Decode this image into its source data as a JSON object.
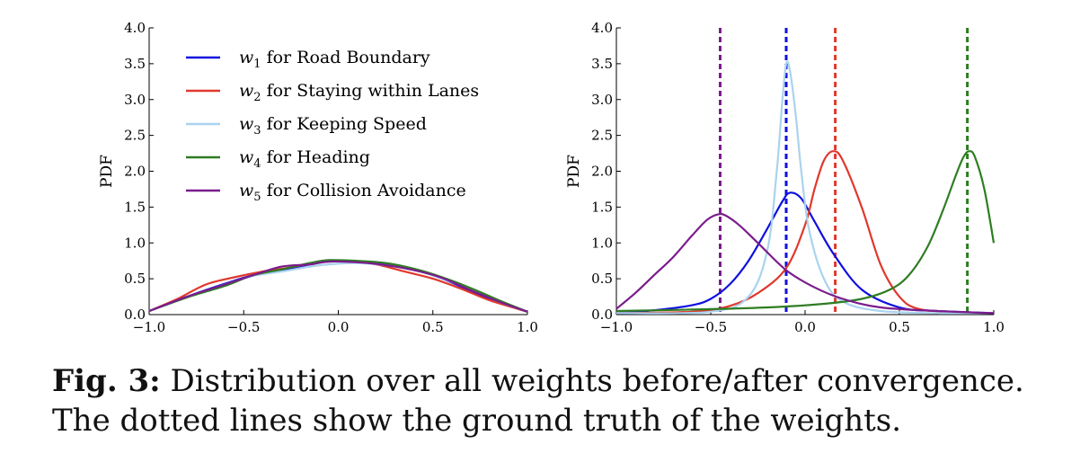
{
  "caption": {
    "label": "Fig. 3:",
    "line1": "Distribution over all weights before/after convergence.",
    "line2": "The dotted lines show the ground truth of the weights."
  },
  "chart_data": [
    {
      "type": "line",
      "panel": "left",
      "ylabel": "PDF",
      "xlabel": "",
      "xlim": [
        -1.0,
        1.0
      ],
      "ylim": [
        0.0,
        4.0
      ],
      "xticks": [
        "−1.0",
        "−0.5",
        "0.0",
        "0.5",
        "1.0"
      ],
      "yticks": [
        "0.0",
        "0.5",
        "1.0",
        "1.5",
        "2.0",
        "2.5",
        "3.0",
        "3.5",
        "4.0"
      ],
      "legend_position": "upper-left",
      "series": [
        {
          "name": "w1 for Road Boundary",
          "sub": "1",
          "label_tail": " for Road Boundary",
          "color": "#1010e0",
          "x": [
            -1.0,
            -0.8,
            -0.6,
            -0.45,
            -0.3,
            -0.15,
            -0.05,
            0.1,
            0.25,
            0.4,
            0.55,
            0.7,
            0.85,
            1.0
          ],
          "y": [
            0.05,
            0.25,
            0.43,
            0.55,
            0.62,
            0.7,
            0.74,
            0.74,
            0.7,
            0.63,
            0.5,
            0.33,
            0.17,
            0.04
          ]
        },
        {
          "name": "w2 for Staying within Lanes",
          "sub": "2",
          "label_tail": " for Staying within Lanes",
          "color": "#e0382c",
          "x": [
            -1.0,
            -0.85,
            -0.7,
            -0.55,
            -0.4,
            -0.25,
            -0.1,
            0.05,
            0.2,
            0.35,
            0.5,
            0.65,
            0.8,
            1.0
          ],
          "y": [
            0.05,
            0.22,
            0.42,
            0.52,
            0.6,
            0.66,
            0.73,
            0.74,
            0.7,
            0.6,
            0.5,
            0.36,
            0.2,
            0.04
          ]
        },
        {
          "name": "w3 for Keeping Speed",
          "sub": "3",
          "label_tail": " for Keeping Speed",
          "color": "#a9d3ee",
          "x": [
            -1.0,
            -0.8,
            -0.6,
            -0.45,
            -0.3,
            -0.15,
            -0.05,
            0.1,
            0.25,
            0.4,
            0.55,
            0.7,
            0.85,
            1.0
          ],
          "y": [
            0.05,
            0.24,
            0.42,
            0.54,
            0.6,
            0.67,
            0.7,
            0.72,
            0.69,
            0.63,
            0.5,
            0.35,
            0.18,
            0.04
          ]
        },
        {
          "name": "w4 for Heading",
          "sub": "4",
          "label_tail": " for Heading",
          "color": "#2e7d22",
          "x": [
            -1.0,
            -0.8,
            -0.6,
            -0.45,
            -0.3,
            -0.15,
            -0.05,
            0.1,
            0.25,
            0.4,
            0.55,
            0.7,
            0.85,
            1.0
          ],
          "y": [
            0.05,
            0.24,
            0.4,
            0.55,
            0.63,
            0.72,
            0.76,
            0.75,
            0.72,
            0.64,
            0.52,
            0.37,
            0.2,
            0.04
          ]
        },
        {
          "name": "w5 for Collision Avoidance",
          "sub": "5",
          "label_tail": " for Collision Avoidance",
          "color": "#7b1c8c",
          "x": [
            -1.0,
            -0.8,
            -0.6,
            -0.45,
            -0.3,
            -0.15,
            -0.05,
            0.1,
            0.25,
            0.4,
            0.55,
            0.7,
            0.85,
            1.0
          ],
          "y": [
            0.05,
            0.25,
            0.42,
            0.55,
            0.67,
            0.7,
            0.74,
            0.73,
            0.69,
            0.62,
            0.51,
            0.34,
            0.18,
            0.04
          ]
        }
      ]
    },
    {
      "type": "line",
      "panel": "right",
      "ylabel": "PDF",
      "xlabel": "",
      "xlim": [
        -1.0,
        1.0
      ],
      "ylim": [
        0.0,
        4.0
      ],
      "xticks": [
        "−1.0",
        "−0.5",
        "0.0",
        "0.5",
        "1.0"
      ],
      "yticks": [
        "0.0",
        "0.5",
        "1.0",
        "1.5",
        "2.0",
        "2.5",
        "3.0",
        "3.5",
        "4.0"
      ],
      "series": [
        {
          "name": "w1 for Road Boundary",
          "color": "#1010e0",
          "x": [
            -1.0,
            -0.8,
            -0.6,
            -0.5,
            -0.4,
            -0.3,
            -0.2,
            -0.12,
            -0.08,
            -0.02,
            0.05,
            0.15,
            0.3,
            0.5,
            0.7,
            1.0
          ],
          "y": [
            0.02,
            0.06,
            0.13,
            0.22,
            0.42,
            0.75,
            1.2,
            1.58,
            1.7,
            1.62,
            1.3,
            0.85,
            0.35,
            0.1,
            0.05,
            0.02
          ]
        },
        {
          "name": "w2 for Staying within Lanes",
          "color": "#e0382c",
          "x": [
            -1.0,
            -0.6,
            -0.4,
            -0.25,
            -0.1,
            0.0,
            0.05,
            0.1,
            0.15,
            0.2,
            0.3,
            0.4,
            0.5,
            0.6,
            0.8,
            1.0
          ],
          "y": [
            0.02,
            0.04,
            0.12,
            0.3,
            0.65,
            1.25,
            1.75,
            2.15,
            2.28,
            2.15,
            1.5,
            0.7,
            0.25,
            0.08,
            0.03,
            0.02
          ]
        },
        {
          "name": "w3 for Keeping Speed",
          "color": "#a9d3ee",
          "x": [
            -1.0,
            -0.5,
            -0.3,
            -0.2,
            -0.15,
            -0.12,
            -0.1,
            -0.08,
            -0.05,
            -0.02,
            0.02,
            0.1,
            0.2,
            0.4,
            0.7,
            1.0
          ],
          "y": [
            0.02,
            0.04,
            0.25,
            0.9,
            2.0,
            3.0,
            3.5,
            3.4,
            2.8,
            2.0,
            1.2,
            0.5,
            0.18,
            0.05,
            0.02,
            0.02
          ]
        },
        {
          "name": "w4 for Heading",
          "color": "#2e7d22",
          "x": [
            -1.0,
            -0.6,
            -0.2,
            0.1,
            0.3,
            0.45,
            0.55,
            0.65,
            0.73,
            0.8,
            0.84,
            0.87,
            0.9,
            0.95,
            1.0
          ],
          "y": [
            0.05,
            0.07,
            0.1,
            0.15,
            0.22,
            0.35,
            0.55,
            0.95,
            1.45,
            1.95,
            2.2,
            2.28,
            2.2,
            1.75,
            1.0
          ]
        },
        {
          "name": "w5 for Collision Avoidance",
          "color": "#7b1c8c",
          "x": [
            -1.0,
            -0.9,
            -0.8,
            -0.7,
            -0.6,
            -0.52,
            -0.46,
            -0.42,
            -0.35,
            -0.25,
            -0.1,
            0.05,
            0.2,
            0.4,
            0.7,
            1.0
          ],
          "y": [
            0.08,
            0.3,
            0.55,
            0.8,
            1.1,
            1.32,
            1.4,
            1.38,
            1.25,
            1.0,
            0.62,
            0.38,
            0.22,
            0.1,
            0.05,
            0.02
          ]
        }
      ],
      "ground_truth": [
        {
          "x": -0.45,
          "color": "#7b1c8c"
        },
        {
          "x": -0.1,
          "color": "#1010e0"
        },
        {
          "x": 0.16,
          "color": "#e0382c"
        },
        {
          "x": 0.86,
          "color": "#2e7d22"
        }
      ]
    }
  ]
}
